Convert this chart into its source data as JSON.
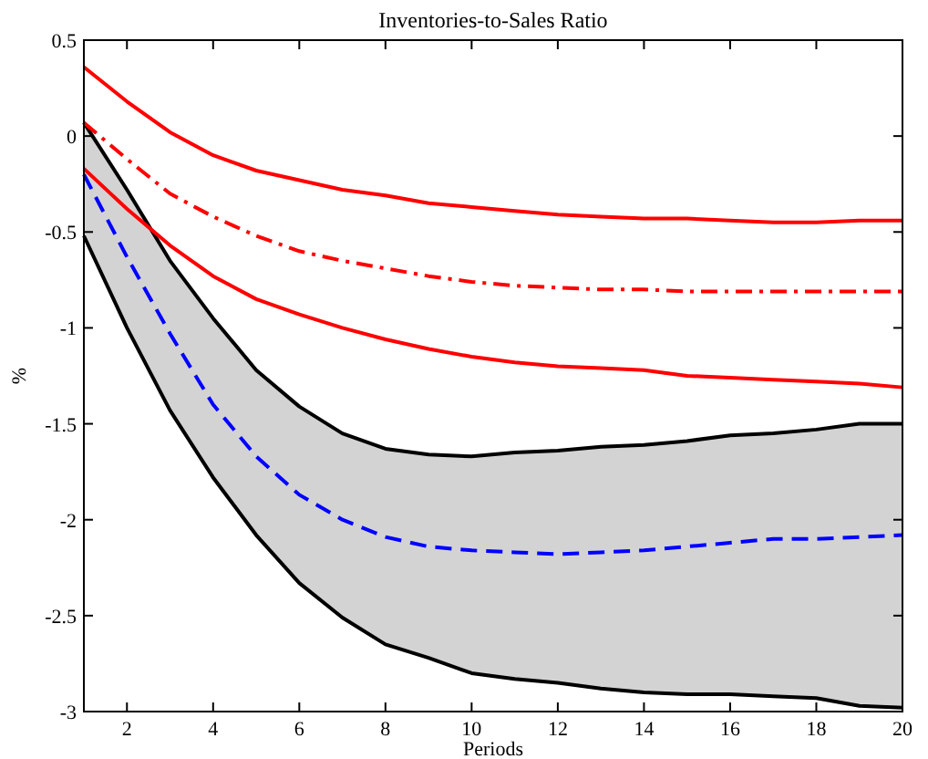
{
  "chart_data": {
    "type": "line",
    "title": "Inventories-to-Sales Ratio",
    "xlabel": "Periods",
    "ylabel": "%",
    "x": [
      1,
      2,
      3,
      4,
      5,
      6,
      7,
      8,
      9,
      10,
      11,
      12,
      13,
      14,
      15,
      16,
      17,
      18,
      19,
      20
    ],
    "xlim": [
      1,
      20
    ],
    "xticks": [
      2,
      4,
      6,
      8,
      10,
      12,
      14,
      16,
      18,
      20
    ],
    "ylim": [
      -3,
      0.5
    ],
    "yticks": [
      -3,
      -2.5,
      -2,
      -1.5,
      -1,
      -0.5,
      0,
      0.5
    ],
    "grid": false,
    "series": [
      {
        "color": "#0000ff",
        "line_style": "dashed",
        "values": [
          -0.2,
          -0.63,
          -1.03,
          -1.4,
          -1.67,
          -1.87,
          -2.0,
          -2.09,
          -2.14,
          -2.16,
          -2.17,
          -2.18,
          -2.17,
          -2.16,
          -2.14,
          -2.12,
          -2.1,
          -2.1,
          -2.09,
          -2.08
        ],
        "lower": [
          -0.52,
          -1.0,
          -1.43,
          -1.78,
          -2.08,
          -2.33,
          -2.51,
          -2.65,
          -2.72,
          -2.8,
          -2.83,
          -2.85,
          -2.88,
          -2.9,
          -2.91,
          -2.91,
          -2.92,
          -2.93,
          -2.97,
          -2.98
        ],
        "upper": [
          0.07,
          -0.28,
          -0.65,
          -0.95,
          -1.22,
          -1.41,
          -1.55,
          -1.63,
          -1.66,
          -1.67,
          -1.65,
          -1.64,
          -1.62,
          -1.61,
          -1.59,
          -1.56,
          -1.55,
          -1.53,
          -1.5,
          -1.5
        ]
      },
      {
        "color": "#000000",
        "line_style": "solid",
        "values": [
          -0.52,
          -1.0,
          -1.43,
          -1.78,
          -2.08,
          -2.33,
          -2.51,
          -2.65,
          -2.72,
          -2.8,
          -2.83,
          -2.85,
          -2.88,
          -2.9,
          -2.91,
          -2.91,
          -2.92,
          -2.93,
          -2.97,
          -2.98
        ]
      },
      {
        "color": "#000000",
        "line_style": "solid",
        "values": [
          0.07,
          -0.28,
          -0.65,
          -0.95,
          -1.22,
          -1.41,
          -1.55,
          -1.63,
          -1.66,
          -1.67,
          -1.65,
          -1.64,
          -1.62,
          -1.61,
          -1.59,
          -1.56,
          -1.55,
          -1.53,
          -1.5,
          -1.5
        ]
      },
      {
        "color": "#ff0000",
        "line_style": "solid",
        "values": [
          0.36,
          0.18,
          0.02,
          -0.1,
          -0.18,
          -0.23,
          -0.28,
          -0.31,
          -0.35,
          -0.37,
          -0.39,
          -0.41,
          -0.42,
          -0.43,
          -0.43,
          -0.44,
          -0.45,
          -0.45,
          -0.44,
          -0.44
        ]
      },
      {
        "color": "#ff0000",
        "line_style": "dashdot",
        "values": [
          0.07,
          -0.12,
          -0.3,
          -0.42,
          -0.52,
          -0.6,
          -0.65,
          -0.69,
          -0.73,
          -0.76,
          -0.78,
          -0.79,
          -0.8,
          -0.8,
          -0.81,
          -0.81,
          -0.81,
          -0.81,
          -0.81,
          -0.81
        ]
      },
      {
        "color": "#ff0000",
        "line_style": "solid",
        "values": [
          -0.17,
          -0.38,
          -0.57,
          -0.73,
          -0.85,
          -0.93,
          -1.0,
          -1.06,
          -1.11,
          -1.15,
          -1.18,
          -1.2,
          -1.21,
          -1.22,
          -1.25,
          -1.26,
          -1.27,
          -1.28,
          -1.29,
          -1.31
        ]
      }
    ]
  }
}
